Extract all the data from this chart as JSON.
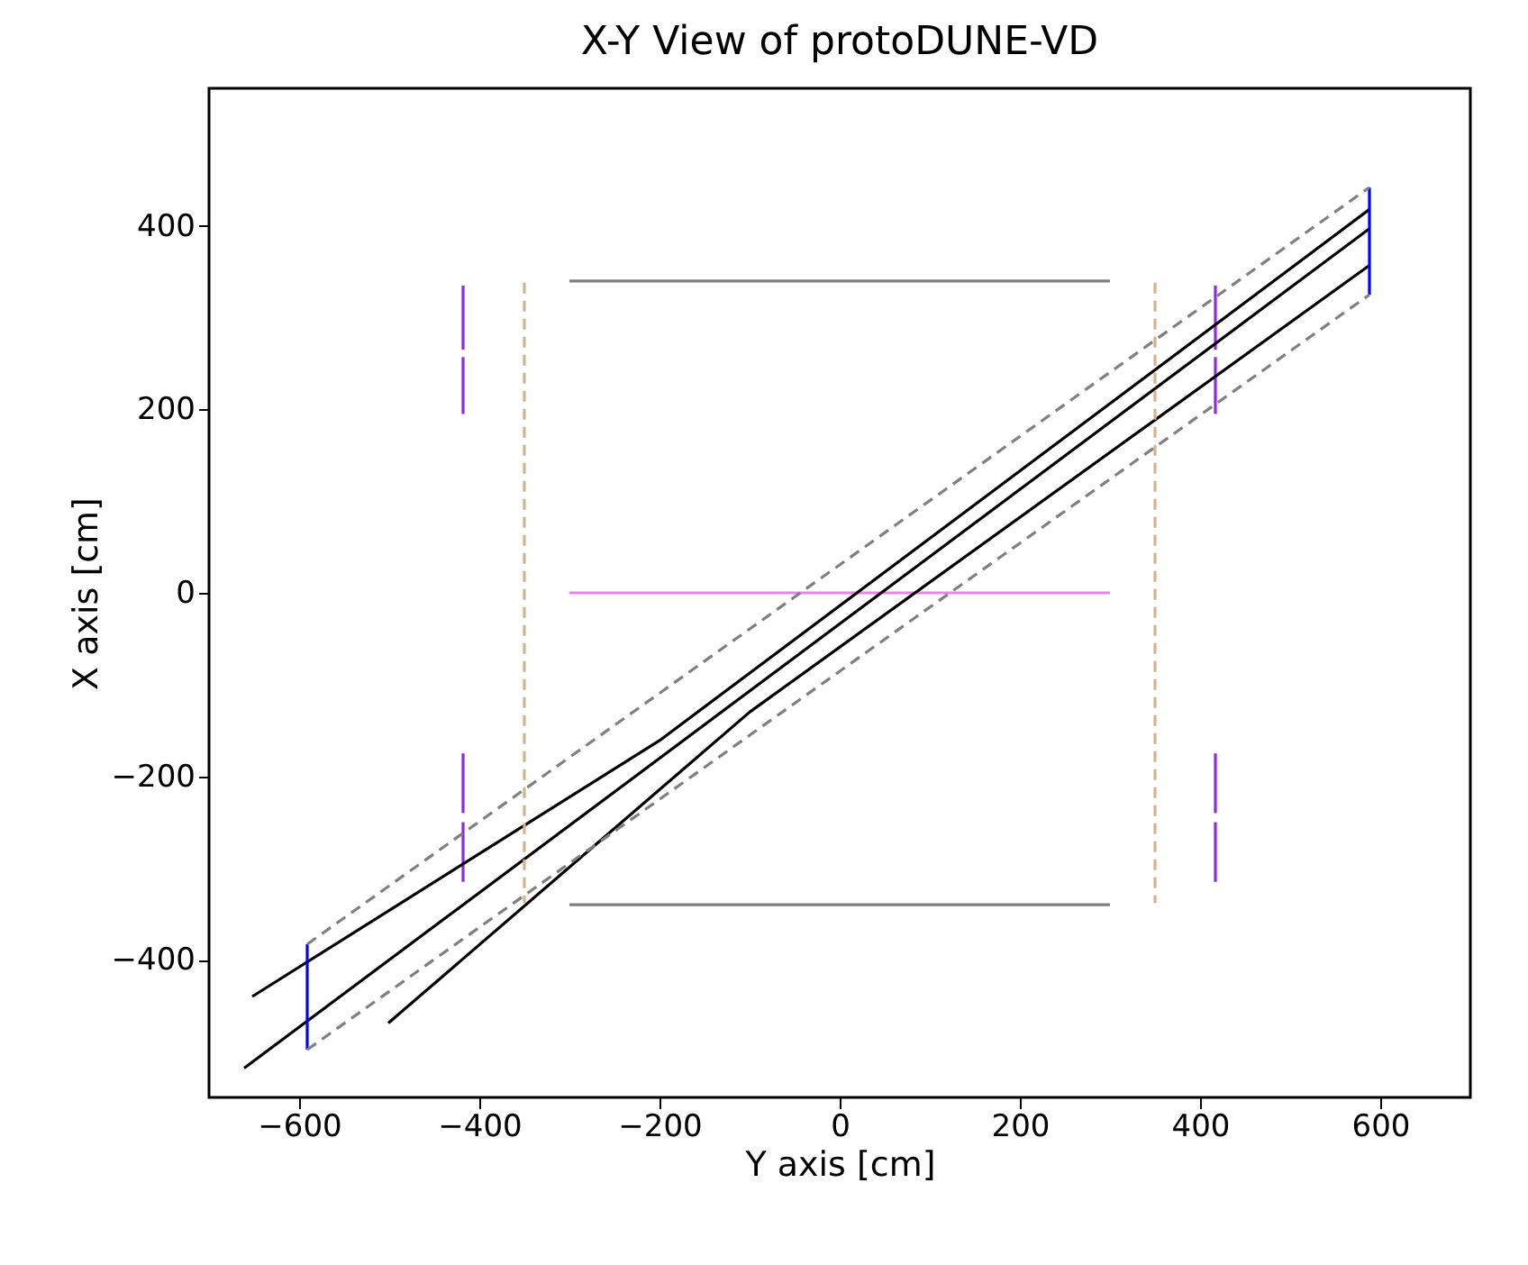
{
  "chart_data": {
    "type": "line",
    "title": "X-Y View of protoDUNE-VD",
    "xlabel": "Y axis [cm]",
    "ylabel": "X axis [cm]",
    "xlim": [
      -700,
      700
    ],
    "ylim": [
      -550,
      550
    ],
    "xticks": [
      -600,
      -400,
      -200,
      0,
      200,
      400,
      600
    ],
    "yticks": [
      -400,
      -200,
      0,
      200,
      400
    ],
    "grid": false,
    "legend": false,
    "marker": "none",
    "series": [
      {
        "color": "#808080",
        "line_style": "solid",
        "x": [
          -300,
          300
        ],
        "values": [
          340,
          340
        ]
      },
      {
        "color": "#808080",
        "line_style": "solid",
        "x": [
          -300,
          300
        ],
        "values": [
          -340,
          -340
        ]
      },
      {
        "color": "#ee82ee",
        "line_style": "solid",
        "x": [
          -300,
          300
        ],
        "values": [
          0,
          0
        ]
      },
      {
        "color": "#d2b48c",
        "line_style": "dashed",
        "x": [
          -350,
          -350
        ],
        "values": [
          338,
          -338
        ]
      },
      {
        "color": "#d2b48c",
        "line_style": "dashed",
        "x": [
          350,
          350
        ],
        "values": [
          338,
          -338
        ]
      },
      {
        "color": "#8a2be2",
        "line_style": "solid",
        "x": [
          -418,
          -418
        ],
        "values": [
          265,
          335
        ]
      },
      {
        "color": "#8a2be2",
        "line_style": "solid",
        "x": [
          -418,
          -418
        ],
        "values": [
          195,
          257
        ]
      },
      {
        "color": "#8a2be2",
        "line_style": "solid",
        "x": [
          -418,
          -418
        ],
        "values": [
          -175,
          -240
        ]
      },
      {
        "color": "#8a2be2",
        "line_style": "solid",
        "x": [
          -418,
          -418
        ],
        "values": [
          -250,
          -315
        ]
      },
      {
        "color": "#8a2be2",
        "line_style": "solid",
        "x": [
          417,
          417
        ],
        "values": [
          265,
          335
        ]
      },
      {
        "color": "#8a2be2",
        "line_style": "solid",
        "x": [
          417,
          417
        ],
        "values": [
          195,
          257
        ]
      },
      {
        "color": "#8a2be2",
        "line_style": "solid",
        "x": [
          417,
          417
        ],
        "values": [
          -175,
          -240
        ]
      },
      {
        "color": "#8a2be2",
        "line_style": "solid",
        "x": [
          417,
          417
        ],
        "values": [
          -250,
          -315
        ]
      },
      {
        "color": "#808080",
        "line_style": "dashed",
        "x": [
          -591,
          588
        ],
        "values": [
          -383,
          442
        ]
      },
      {
        "color": "#808080",
        "line_style": "dashed",
        "x": [
          -591,
          588
        ],
        "values": [
          -498,
          325
        ]
      },
      {
        "color": "#000000",
        "line_style": "solid",
        "x": [
          -652,
          -200,
          588
        ],
        "values": [
          -440,
          -161,
          418
        ]
      },
      {
        "color": "#000000",
        "line_style": "solid",
        "x": [
          -661,
          588
        ],
        "values": [
          -518,
          397
        ]
      },
      {
        "color": "#000000",
        "line_style": "solid",
        "x": [
          -501,
          -100,
          588
        ],
        "values": [
          -469,
          -130,
          357
        ]
      },
      {
        "color": "#0000ff",
        "line_style": "solid",
        "x": [
          -591,
          -591
        ],
        "values": [
          -383,
          -498
        ]
      },
      {
        "color": "#0000ff",
        "line_style": "solid",
        "x": [
          588,
          588
        ],
        "values": [
          442,
          325
        ]
      }
    ]
  }
}
